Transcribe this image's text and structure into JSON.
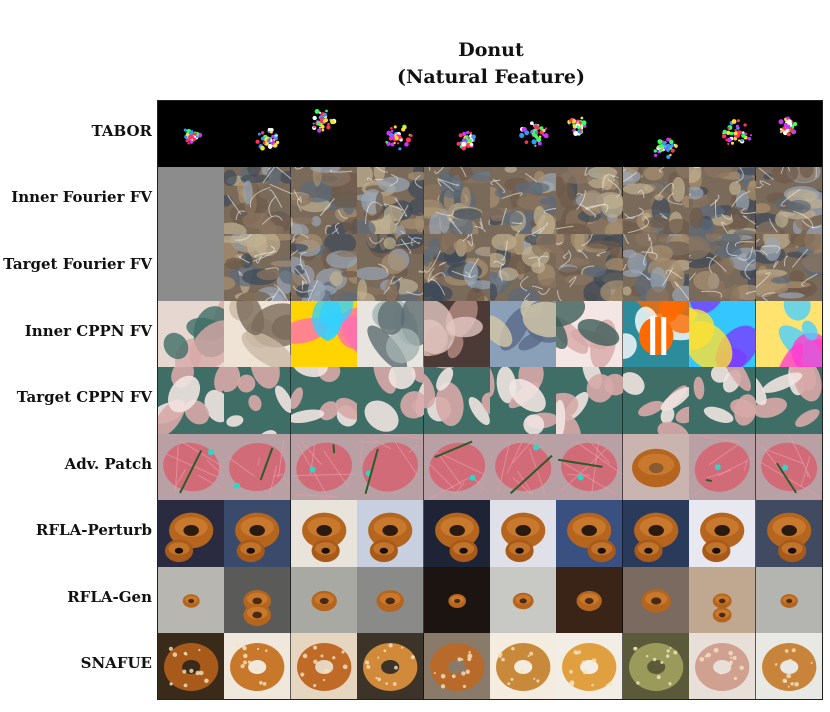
{
  "figure": {
    "title_line1": "Donut",
    "title_line2": "(Natural Feature)"
  },
  "rows": [
    {
      "label": "TABOR",
      "style": "tabor"
    },
    {
      "label": "Inner Fourier FV",
      "style": "fourier"
    },
    {
      "label": "Target Fourier FV",
      "style": "fourier"
    },
    {
      "label": "Inner CPPN FV",
      "style": "cppn_inner"
    },
    {
      "label": "Target CPPN FV",
      "style": "cppn_target"
    },
    {
      "label": "Adv. Patch",
      "style": "patch"
    },
    {
      "label": "RFLA-Perturb",
      "style": "perturb"
    },
    {
      "label": "RFLA-Gen",
      "style": "gen"
    },
    {
      "label": "SNAFUE",
      "style": "snafue"
    }
  ],
  "colors": {
    "tabor_bg": "#000000",
    "fourier_base": "#7a6a5a",
    "cppn_pink": "#d7a9a8",
    "cppn_teal": "#4f7a73",
    "patch_pink": "#d26b78",
    "donut_brown": "#b5651d",
    "donut_dark": "#6b3410",
    "gen_gray": "#a9a9a4"
  }
}
